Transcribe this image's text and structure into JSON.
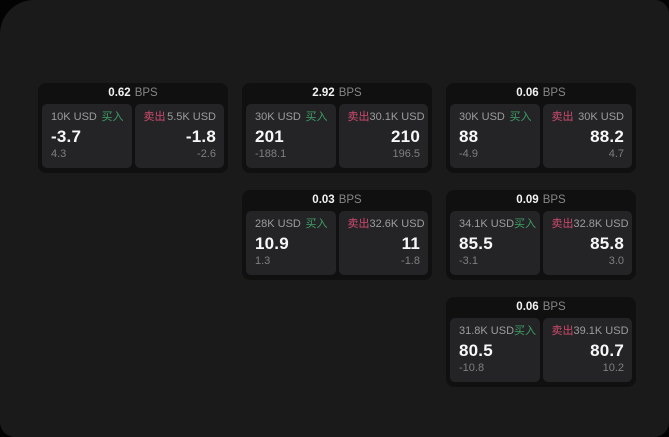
{
  "labels": {
    "bps": "BPS",
    "buy": "买入",
    "sell": "卖出"
  },
  "colors": {
    "page_background": "#030303",
    "panel_background": "#1a1a1a",
    "card_background": "#101011",
    "tile_background": "#242427",
    "buy_green": "#3f9f66",
    "sell_red": "#cf4a6e",
    "value_white": "#f7f7f7",
    "muted_gray": "#9c9c9c"
  },
  "cards": [
    {
      "bps": "0.62",
      "buy": {
        "amount": "10K USD",
        "price": "-3.7",
        "delta": "4.3"
      },
      "sell": {
        "amount": "5.5K USD",
        "price": "-1.8",
        "delta": "-2.6"
      }
    },
    {
      "bps": "2.92",
      "buy": {
        "amount": "30K USD",
        "price": "201",
        "delta": "-188.1"
      },
      "sell": {
        "amount": "30.1K USD",
        "price": "210",
        "delta": "196.5"
      }
    },
    {
      "bps": "0.06",
      "buy": {
        "amount": "30K USD",
        "price": "88",
        "delta": "-4.9"
      },
      "sell": {
        "amount": "30K USD",
        "price": "88.2",
        "delta": "4.7"
      }
    },
    {
      "bps": "0.03",
      "buy": {
        "amount": "28K USD",
        "price": "10.9",
        "delta": "1.3"
      },
      "sell": {
        "amount": "32.6K USD",
        "price": "11",
        "delta": "-1.8"
      }
    },
    {
      "bps": "0.09",
      "buy": {
        "amount": "34.1K USD",
        "price": "85.5",
        "delta": "-3.1"
      },
      "sell": {
        "amount": "32.8K USD",
        "price": "85.8",
        "delta": "3.0"
      }
    },
    {
      "bps": "0.06",
      "buy": {
        "amount": "31.8K USD",
        "price": "80.5",
        "delta": "-10.8"
      },
      "sell": {
        "amount": "39.1K USD",
        "price": "80.7",
        "delta": "10.2"
      }
    }
  ]
}
